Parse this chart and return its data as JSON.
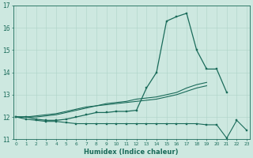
{
  "xlabel": "Humidex (Indice chaleur)",
  "background_color": "#cde8e0",
  "line_color": "#1a6b5a",
  "grid_color": "#aed4c8",
  "x": [
    0,
    1,
    2,
    3,
    4,
    5,
    6,
    7,
    8,
    9,
    10,
    11,
    12,
    13,
    14,
    15,
    16,
    17,
    18,
    19,
    20,
    21,
    22,
    23
  ],
  "line1": [
    12.0,
    12.0,
    11.9,
    11.85,
    11.85,
    11.9,
    12.0,
    12.1,
    12.2,
    12.2,
    12.25,
    12.25,
    12.3,
    13.3,
    14.0,
    16.3,
    16.5,
    16.65,
    15.0,
    14.15,
    14.15,
    13.1,
    null,
    null
  ],
  "line2": [
    12.0,
    12.0,
    12.0,
    12.05,
    12.1,
    12.2,
    12.3,
    12.4,
    12.5,
    12.6,
    12.65,
    12.7,
    12.8,
    12.85,
    12.9,
    13.0,
    13.1,
    13.3,
    13.45,
    13.55,
    null,
    null,
    null,
    null
  ],
  "line3": [
    12.0,
    12.0,
    12.05,
    12.1,
    12.15,
    12.25,
    12.35,
    12.45,
    12.5,
    12.55,
    12.6,
    12.65,
    12.7,
    12.75,
    12.8,
    12.9,
    13.0,
    13.15,
    13.3,
    13.4,
    null,
    null,
    null,
    null
  ],
  "line4": [
    12.0,
    11.9,
    11.85,
    11.8,
    11.8,
    11.75,
    11.7,
    11.7,
    11.7,
    11.7,
    11.7,
    11.7,
    11.7,
    11.7,
    11.7,
    11.7,
    11.7,
    11.7,
    11.7,
    11.65,
    11.65,
    11.05,
    11.85,
    11.4
  ],
  "ylim": [
    11.0,
    17.0
  ],
  "yticks": [
    11,
    12,
    13,
    14,
    15,
    16,
    17
  ],
  "xticks": [
    0,
    1,
    2,
    3,
    4,
    5,
    6,
    7,
    8,
    9,
    10,
    11,
    12,
    13,
    14,
    15,
    16,
    17,
    18,
    19,
    20,
    21,
    22,
    23
  ]
}
